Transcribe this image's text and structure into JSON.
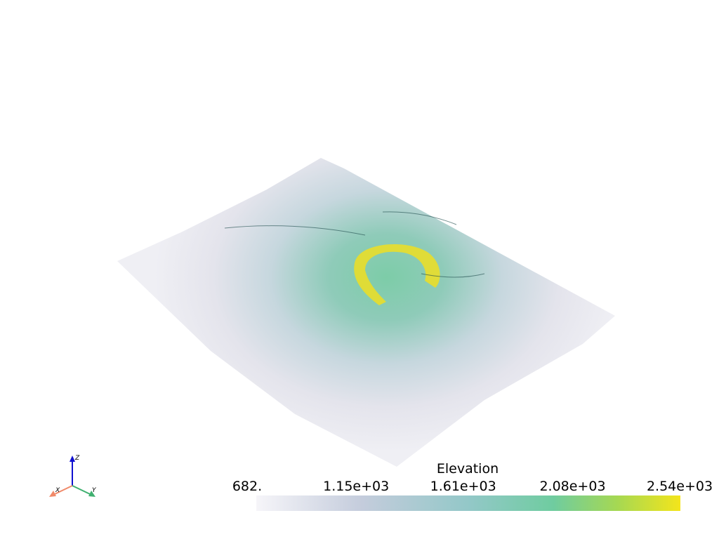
{
  "scalar_bar": {
    "title": "Elevation",
    "ticks": [
      {
        "value": 682,
        "label": "682."
      },
      {
        "value": 1150,
        "label": "1.15e+03"
      },
      {
        "value": 1610,
        "label": "1.61e+03"
      },
      {
        "value": 2080,
        "label": "2.08e+03"
      },
      {
        "value": 2540,
        "label": "2.54e+03"
      }
    ]
  },
  "axes_widget": {
    "x_label": "X",
    "y_label": "Y",
    "z_label": "Z"
  }
}
